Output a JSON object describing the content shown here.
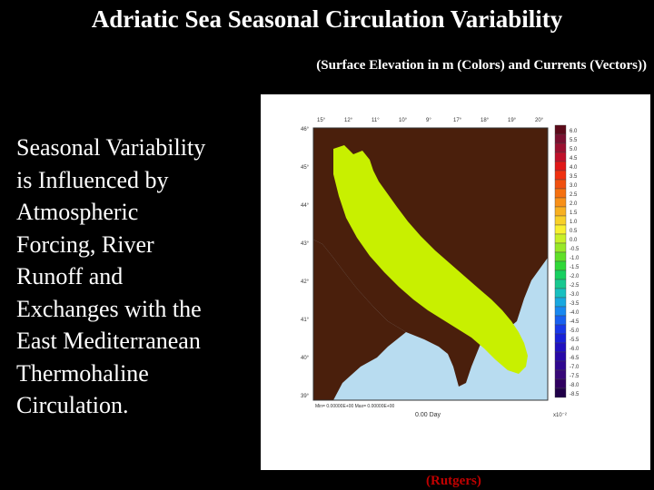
{
  "slide": {
    "title": "Adriatic Sea Seasonal Circulation Variability",
    "subtitle": "(Surface Elevation in m (Colors) and Currents (Vectors))",
    "body_lines": [
      "Seasonal Variability",
      "is Influenced by",
      "Atmospheric",
      "Forcing, River",
      "Runoff and",
      "Exchanges with the",
      "East Mediterranean",
      "Thermohaline",
      "Circulation."
    ],
    "credit": "(Rutgers)"
  },
  "figure": {
    "top_axis_labels": [
      "15°",
      "12°",
      "11°",
      "10°",
      "9°",
      "17°",
      "18°",
      "19°",
      "20°"
    ],
    "left_axis_labels": [
      "46°",
      "45°",
      "44°",
      "43°",
      "42°",
      "41°",
      "40°",
      "39°"
    ],
    "time_label": "0.00 Day",
    "footer_left": "Min= 0.00000E+00   Max= 0.00000E+00",
    "scale_note": "x10⁻²",
    "colorbar_labels": [
      "6.0",
      "5.5",
      "5.0",
      "4.5",
      "4.0",
      "3.5",
      "3.0",
      "2.5",
      "2.0",
      "1.5",
      "1.0",
      "0.5",
      "0.0",
      "-0.5",
      "-1.0",
      "-1.5",
      "-2.0",
      "-2.5",
      "-3.0",
      "-3.5",
      "-4.0",
      "-4.5",
      "-5.0",
      "-5.5",
      "-6.0",
      "-6.5",
      "-7.0",
      "-7.5",
      "-8.0",
      "-8.5"
    ],
    "colorbar_colors": [
      "#5c0a1a",
      "#7a1030",
      "#9b1030",
      "#c0102a",
      "#e01818",
      "#f03010",
      "#f05010",
      "#f57010",
      "#f89018",
      "#f8b020",
      "#f8d028",
      "#f8f030",
      "#c8f028",
      "#98e828",
      "#60e028",
      "#30d838",
      "#18d060",
      "#18c890",
      "#18c0c0",
      "#18a8e0",
      "#1888f0",
      "#1860f0",
      "#1838e8",
      "#1820d8",
      "#2010c0",
      "#2808a8",
      "#300890",
      "#380878",
      "#300060",
      "#200048"
    ],
    "colors": {
      "land": "#4a1f0c",
      "sea": "#c8f000",
      "ocean_outside": "#b8dcf0"
    }
  }
}
